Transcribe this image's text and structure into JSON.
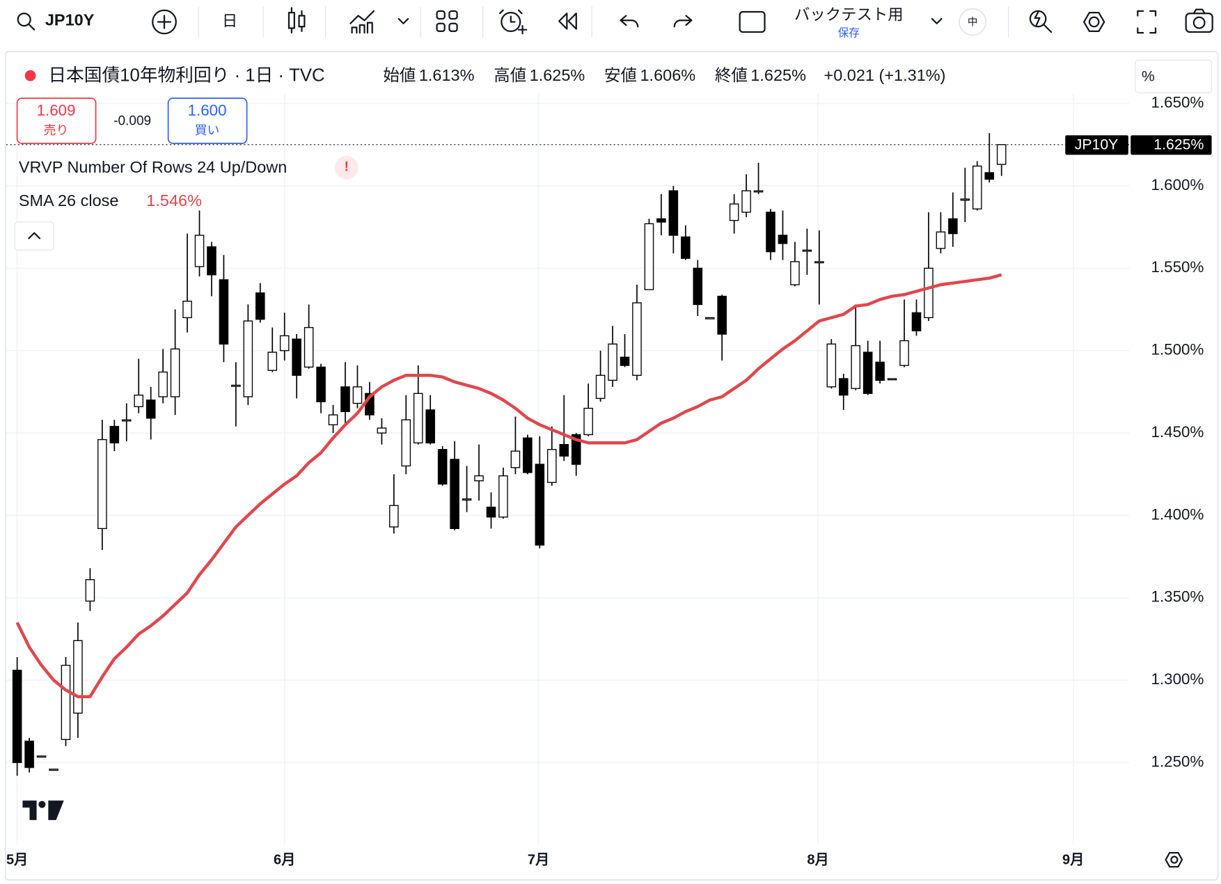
{
  "toolbar": {
    "symbol": "JP10Y",
    "interval": "日",
    "layout_name": "バックテスト用",
    "save": "保存",
    "language": "中"
  },
  "legend": {
    "title": "日本国債10年物利回り · 1日 · TVC",
    "ohlc": [
      {
        "label": "始値",
        "value": "1.613%"
      },
      {
        "label": "高値",
        "value": "1.625%"
      },
      {
        "label": "安値",
        "value": "1.606%"
      },
      {
        "label": "終値",
        "value": "1.625%"
      }
    ],
    "change": "+0.021 (+1.31%)",
    "scale_mode": "%"
  },
  "trade": {
    "sell_price": "1.609",
    "sell_label": "売り",
    "spread": "-0.009",
    "buy_price": "1.600",
    "buy_label": "買い"
  },
  "indicators": [
    {
      "name": "VRVP Number Of Rows 24 Up/Down",
      "warning": "!"
    }
  ],
  "chart_data": {
    "type": "candlestick",
    "up_color": "#ffffff",
    "down_color": "#000000",
    "x": [
      0,
      1,
      2,
      3,
      4,
      5,
      6,
      7,
      8,
      9,
      10,
      11,
      12,
      13,
      14,
      15,
      16,
      17,
      18,
      19,
      20,
      21,
      22,
      23,
      24,
      25,
      26,
      27,
      28,
      29,
      30,
      31,
      32,
      33,
      34,
      35,
      36,
      37,
      38,
      39,
      40,
      41,
      42,
      43,
      44,
      45,
      46,
      47,
      48,
      49,
      50,
      51,
      52,
      53,
      54,
      55,
      56,
      57,
      58,
      59,
      60,
      61,
      62,
      63,
      64,
      65,
      66,
      67,
      68,
      69,
      70,
      71,
      72,
      73,
      74,
      75,
      76,
      77,
      78,
      79,
      80,
      81
    ],
    "open": [
      1.306,
      1.263,
      1.254,
      1.246,
      1.264,
      1.28,
      1.348,
      1.392,
      1.454,
      1.458,
      1.466,
      1.47,
      1.472,
      1.472,
      1.52,
      1.551,
      1.563,
      1.543,
      1.479,
      1.472,
      1.535,
      1.488,
      1.5,
      1.507,
      1.49,
      1.49,
      1.455,
      1.478,
      1.468,
      1.474,
      1.45,
      1.393,
      1.43,
      1.444,
      1.464,
      1.44,
      1.434,
      1.41,
      1.421,
      1.405,
      1.399,
      1.429,
      1.447,
      1.431,
      1.42,
      1.443,
      1.449,
      1.449,
      1.471,
      1.482,
      1.496,
      1.485,
      1.537,
      1.58,
      1.597,
      1.569,
      1.55,
      1.52,
      1.533,
      1.579,
      1.584,
      1.597,
      1.584,
      1.57,
      1.54,
      1.561,
      1.554,
      1.478,
      1.483,
      1.477,
      1.499,
      1.493,
      1.483,
      1.491,
      1.523,
      1.52,
      1.562,
      1.58,
      1.592,
      1.586,
      1.608,
      1.613
    ],
    "high": [
      1.314,
      1.265,
      1.254,
      1.246,
      1.314,
      1.335,
      1.368,
      1.458,
      1.458,
      1.468,
      1.495,
      1.478,
      1.501,
      1.525,
      1.571,
      1.585,
      1.566,
      1.558,
      1.493,
      1.528,
      1.541,
      1.514,
      1.523,
      1.51,
      1.528,
      1.492,
      1.467,
      1.493,
      1.491,
      1.481,
      1.459,
      1.425,
      1.473,
      1.491,
      1.473,
      1.442,
      1.445,
      1.43,
      1.443,
      1.414,
      1.429,
      1.46,
      1.449,
      1.448,
      1.454,
      1.473,
      1.45,
      1.48,
      1.5,
      1.515,
      1.51,
      1.54,
      1.58,
      1.595,
      1.6,
      1.576,
      1.555,
      1.52,
      1.534,
      1.595,
      1.607,
      1.614,
      1.586,
      1.585,
      1.566,
      1.574,
      1.573,
      1.507,
      1.486,
      1.528,
      1.506,
      1.506,
      1.483,
      1.531,
      1.531,
      1.584,
      1.584,
      1.596,
      1.611,
      1.615,
      1.632,
      1.625
    ],
    "low": [
      1.242,
      1.244,
      1.254,
      1.246,
      1.26,
      1.265,
      1.342,
      1.379,
      1.439,
      1.445,
      1.462,
      1.446,
      1.468,
      1.461,
      1.511,
      1.545,
      1.533,
      1.493,
      1.454,
      1.467,
      1.517,
      1.487,
      1.494,
      1.471,
      1.489,
      1.462,
      1.45,
      1.455,
      1.465,
      1.458,
      1.443,
      1.389,
      1.425,
      1.443,
      1.443,
      1.418,
      1.391,
      1.402,
      1.409,
      1.392,
      1.398,
      1.425,
      1.425,
      1.38,
      1.418,
      1.433,
      1.424,
      1.448,
      1.469,
      1.478,
      1.49,
      1.482,
      1.537,
      1.57,
      1.559,
      1.555,
      1.521,
      1.52,
      1.494,
      1.571,
      1.581,
      1.595,
      1.555,
      1.555,
      1.539,
      1.546,
      1.528,
      1.477,
      1.464,
      1.476,
      1.473,
      1.48,
      1.483,
      1.49,
      1.509,
      1.518,
      1.559,
      1.563,
      1.578,
      1.585,
      1.602,
      1.606
    ],
    "close": [
      1.25,
      1.247,
      1.254,
      1.246,
      1.309,
      1.324,
      1.361,
      1.446,
      1.444,
      1.458,
      1.473,
      1.459,
      1.487,
      1.501,
      1.53,
      1.57,
      1.546,
      1.504,
      1.479,
      1.518,
      1.519,
      1.499,
      1.509,
      1.485,
      1.514,
      1.469,
      1.461,
      1.463,
      1.478,
      1.461,
      1.453,
      1.406,
      1.458,
      1.474,
      1.444,
      1.419,
      1.392,
      1.41,
      1.424,
      1.399,
      1.424,
      1.439,
      1.426,
      1.382,
      1.44,
      1.436,
      1.431,
      1.465,
      1.485,
      1.504,
      1.491,
      1.529,
      1.577,
      1.578,
      1.57,
      1.556,
      1.528,
      1.52,
      1.51,
      1.589,
      1.597,
      1.597,
      1.56,
      1.565,
      1.554,
      1.561,
      1.554,
      1.504,
      1.473,
      1.503,
      1.474,
      1.482,
      1.483,
      1.506,
      1.512,
      1.55,
      1.572,
      1.571,
      1.592,
      1.612,
      1.604,
      1.625
    ],
    "overlays": [
      {
        "type": "line",
        "name": "SMA 26 close",
        "color": "#e0474c",
        "value_label": "1.546%",
        "values": [
          1.335,
          1.32,
          1.309,
          1.3,
          1.294,
          1.29,
          1.29,
          1.302,
          1.313,
          1.32,
          1.328,
          1.333,
          1.339,
          1.346,
          1.353,
          1.364,
          1.373,
          1.383,
          1.393,
          1.4,
          1.407,
          1.413,
          1.419,
          1.424,
          1.432,
          1.438,
          1.447,
          1.455,
          1.462,
          1.472,
          1.478,
          1.482,
          1.485,
          1.485,
          1.485,
          1.484,
          1.481,
          1.479,
          1.477,
          1.474,
          1.47,
          1.465,
          1.459,
          1.455,
          1.452,
          1.449,
          1.446,
          1.444,
          1.444,
          1.444,
          1.444,
          1.446,
          1.451,
          1.456,
          1.459,
          1.463,
          1.466,
          1.47,
          1.472,
          1.477,
          1.482,
          1.489,
          1.495,
          1.501,
          1.506,
          1.512,
          1.518,
          1.52,
          1.522,
          1.527,
          1.528,
          1.531,
          1.533,
          1.534,
          1.536,
          1.538,
          1.54,
          1.541,
          1.542,
          1.543,
          1.544,
          1.546
        ]
      }
    ],
    "last_price": {
      "symbol": "JP10Y",
      "value": 1.625,
      "label": "1.625%"
    },
    "xlim": [
      -0.9,
      91.5
    ],
    "xticks": [
      {
        "value": 0,
        "label": "5月"
      },
      {
        "value": 22,
        "label": "6月"
      },
      {
        "value": 42.9,
        "label": "7月"
      },
      {
        "value": 65.9,
        "label": "8月"
      },
      {
        "value": 86.9,
        "label": "9月"
      }
    ],
    "ylim": [
      1.2,
      1.656
    ],
    "yticks": [
      {
        "value": 1.25,
        "label": "1.250%"
      },
      {
        "value": 1.3,
        "label": "1.300%"
      },
      {
        "value": 1.35,
        "label": "1.350%"
      },
      {
        "value": 1.4,
        "label": "1.400%"
      },
      {
        "value": 1.45,
        "label": "1.450%"
      },
      {
        "value": 1.5,
        "label": "1.500%"
      },
      {
        "value": 1.55,
        "label": "1.550%"
      },
      {
        "value": 1.6,
        "label": "1.600%"
      },
      {
        "value": 1.65,
        "label": "1.650%"
      }
    ],
    "grid": true
  }
}
